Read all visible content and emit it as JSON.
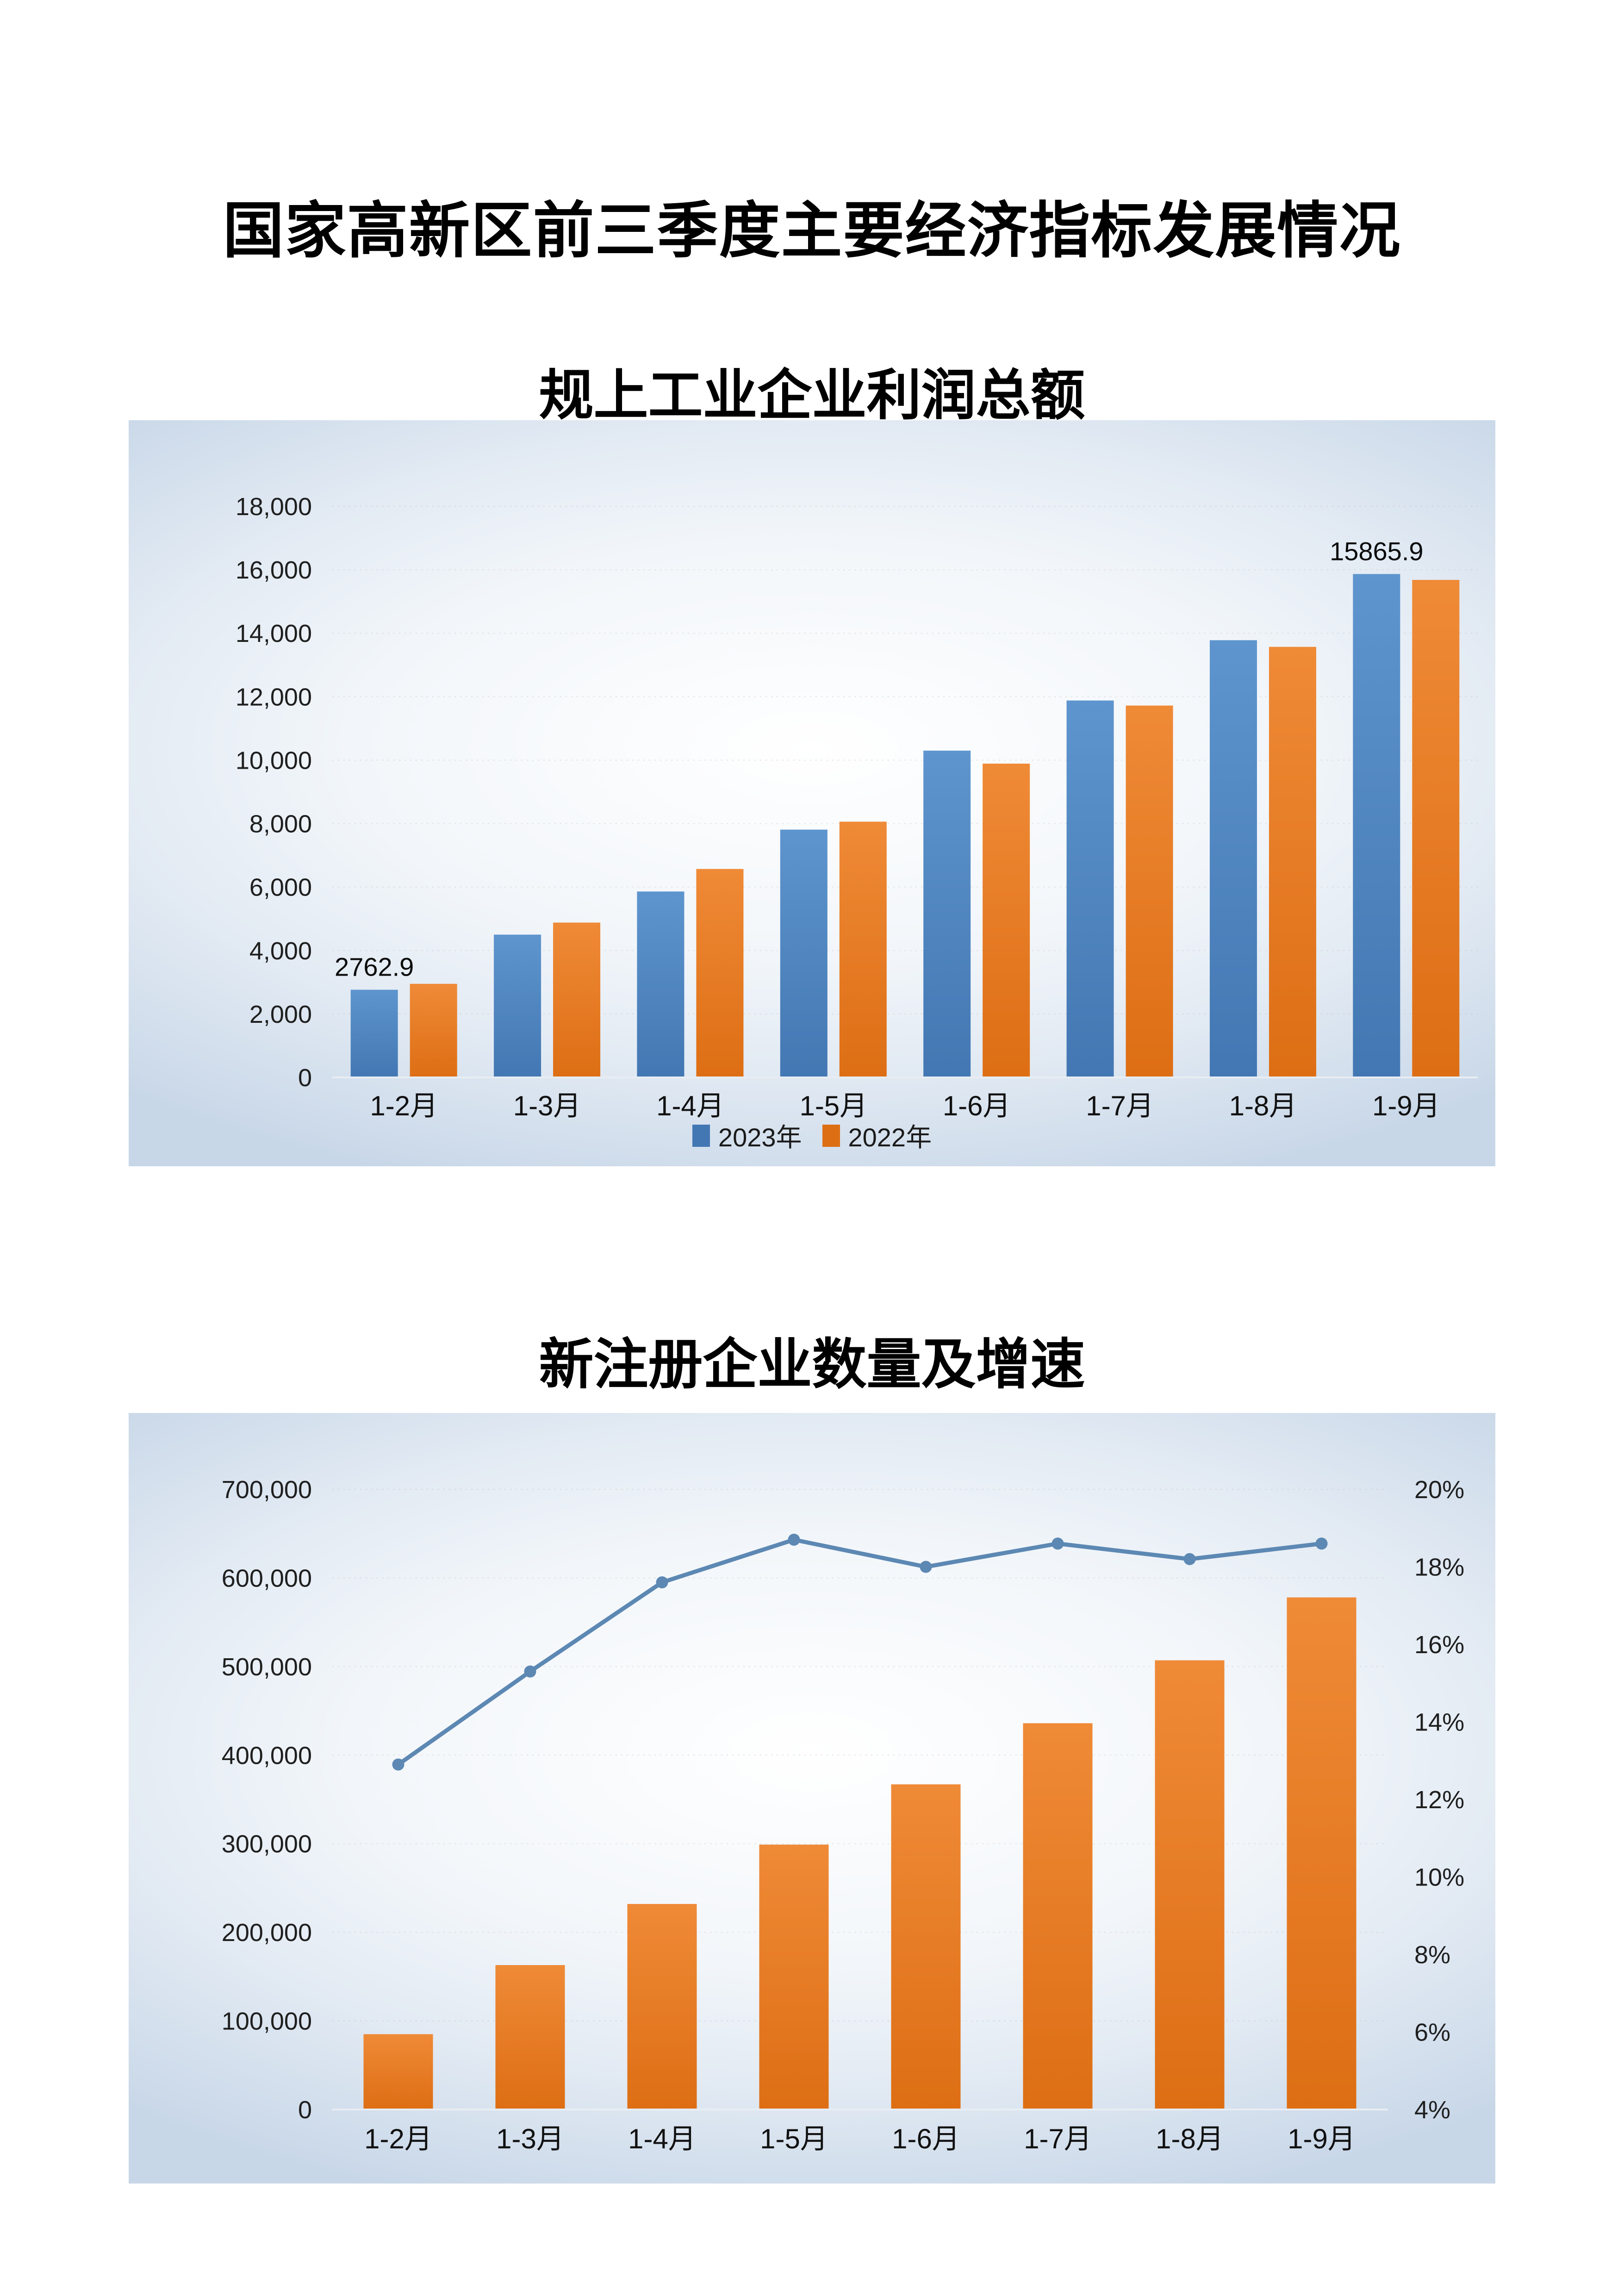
{
  "page": {
    "title": "国家高新区前三季度主要经济指标发展情况",
    "background_color": "#ffffff",
    "panel_gradient_edge": "#c8d7e8",
    "panel_gradient_center": "#ffffff"
  },
  "chart_data": [
    {
      "type": "bar",
      "title": "规上工业企业利润总额",
      "categories": [
        "1-2月",
        "1-3月",
        "1-4月",
        "1-5月",
        "1-6月",
        "1-7月",
        "1-8月",
        "1-9月"
      ],
      "series": [
        {
          "name": "2023年",
          "color": "#4377B3",
          "color_light": "#5E95CE",
          "values": [
            2762.9,
            4500,
            5860,
            7810,
            10300,
            11880,
            13780,
            15865.9
          ]
        },
        {
          "name": "2022年",
          "color": "#DD6E14",
          "color_light": "#EF8A37",
          "values": [
            2950,
            4880,
            6570,
            8060,
            9890,
            11720,
            13570,
            15680
          ]
        }
      ],
      "data_labels": [
        {
          "series": 0,
          "index": 0,
          "text": "2762.9"
        },
        {
          "series": 0,
          "index": 7,
          "text": "15865.9"
        }
      ],
      "ylim": [
        0,
        18000
      ],
      "ystep": 2000,
      "ytick_labels": [
        "0",
        "2,000",
        "4,000",
        "6,000",
        "8,000",
        "10,000",
        "12,000",
        "14,000",
        "16,000",
        "18,000"
      ],
      "grid": true,
      "legend_position": "bottom"
    },
    {
      "type": "bar+line",
      "title": "新注册企业数量及增速",
      "categories": [
        "1-2月",
        "1-3月",
        "1-4月",
        "1-5月",
        "1-6月",
        "1-7月",
        "1-8月",
        "1-9月"
      ],
      "bar_series": {
        "color": "#DD6E14",
        "color_light": "#EF8A37",
        "values": [
          85000,
          163000,
          232000,
          299000,
          367000,
          436000,
          507000,
          578000
        ]
      },
      "line_series": {
        "color": "#5C88B3",
        "values_pct": [
          12.9,
          15.3,
          17.6,
          18.7,
          18.0,
          18.6,
          18.2,
          18.6
        ]
      },
      "left_ylim": [
        0,
        700000
      ],
      "left_ystep": 100000,
      "left_tick_labels": [
        "0",
        "100,000",
        "200,000",
        "300,000",
        "400,000",
        "500,000",
        "600,000",
        "700,000"
      ],
      "right_ylim_pct": [
        4,
        20
      ],
      "right_ystep_pct": 2,
      "right_tick_labels": [
        "4%",
        "6%",
        "8%",
        "10%",
        "12%",
        "14%",
        "16%",
        "18%",
        "20%"
      ],
      "grid": true,
      "legend_position": "none"
    }
  ]
}
